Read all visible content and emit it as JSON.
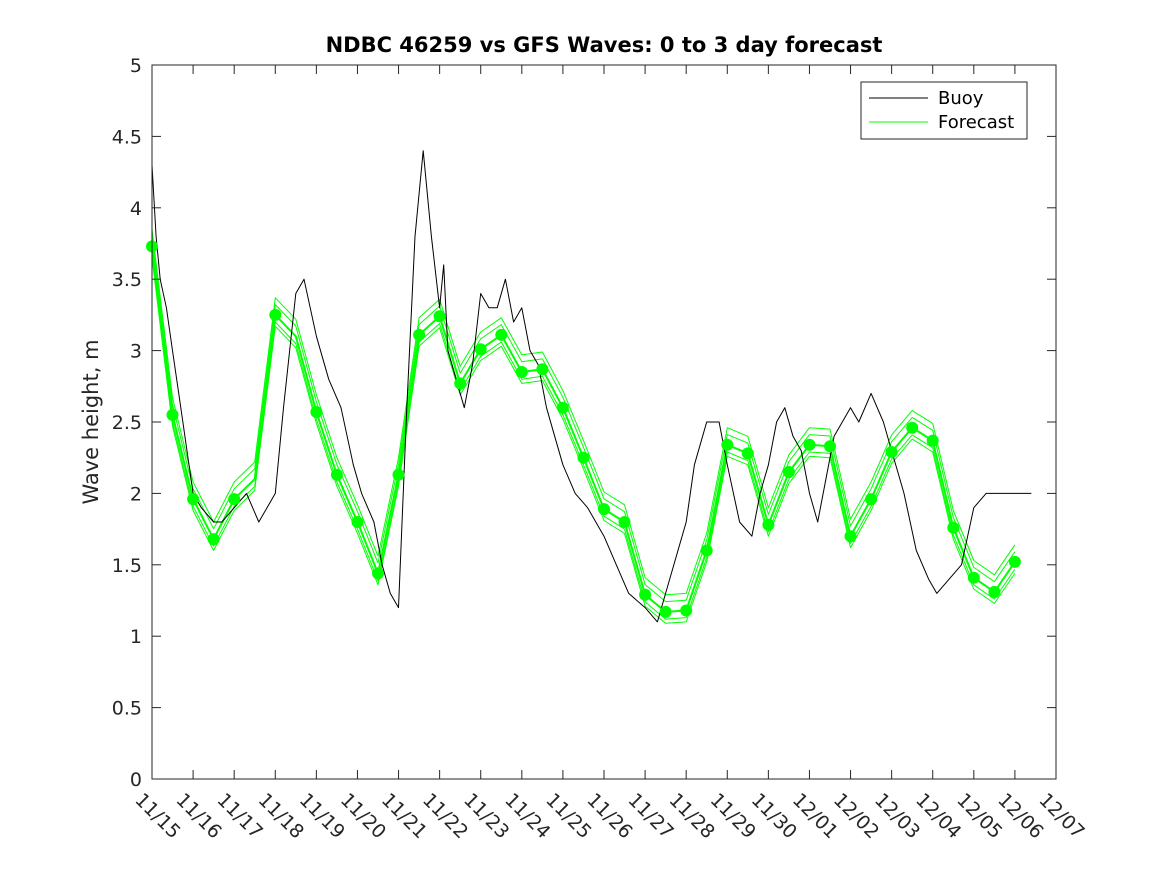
{
  "chart_data": {
    "type": "line",
    "title": "NDBC 46259 vs GFS Waves: 0 to 3 day forecast",
    "xlabel": "",
    "ylabel": "Wave height, m",
    "xlim": [
      0,
      22
    ],
    "ylim": [
      0,
      5
    ],
    "yticks": [
      0,
      0.5,
      1,
      1.5,
      2,
      2.5,
      3,
      3.5,
      4,
      4.5,
      5
    ],
    "ytick_labels": [
      "0",
      "0.5",
      "1",
      "1.5",
      "2",
      "2.5",
      "3",
      "3.5",
      "4",
      "4.5",
      "5"
    ],
    "xtick_labels": [
      "11/15",
      "11/16",
      "11/17",
      "11/18",
      "11/19",
      "11/20",
      "11/21",
      "11/22",
      "11/23",
      "11/24",
      "11/25",
      "11/26",
      "11/27",
      "11/28",
      "11/29",
      "11/30",
      "12/01",
      "12/02",
      "12/03",
      "12/04",
      "12/05",
      "12/06",
      "12/07"
    ],
    "legend": {
      "location": "top-right",
      "entries": [
        "Buoy",
        "Forecast"
      ]
    },
    "colors": {
      "buoy": "#000000",
      "forecast": "#00ff00",
      "axes": "#262626"
    },
    "series": [
      {
        "name": "Buoy",
        "x": [
          0,
          0.1,
          0.2,
          0.35,
          0.5,
          0.7,
          1.0,
          1.2,
          1.5,
          1.7,
          2.0,
          2.3,
          2.6,
          3.0,
          3.2,
          3.5,
          3.7,
          4.0,
          4.3,
          4.6,
          4.9,
          5.1,
          5.4,
          5.6,
          5.8,
          6.0,
          6.2,
          6.4,
          6.6,
          6.8,
          7.0,
          7.1,
          7.2,
          7.4,
          7.6,
          7.8,
          8.0,
          8.2,
          8.4,
          8.6,
          8.8,
          9.0,
          9.2,
          9.4,
          9.6,
          9.8,
          10.0,
          10.3,
          10.6,
          11.0,
          11.3,
          11.6,
          12.0,
          12.3,
          12.6,
          13.0,
          13.2,
          13.5,
          13.8,
          14.0,
          14.3,
          14.6,
          14.8,
          15.0,
          15.2,
          15.4,
          15.6,
          15.8,
          16.0,
          16.2,
          16.4,
          16.6,
          16.8,
          17.0,
          17.2,
          17.5,
          17.8,
          18.0,
          18.3,
          18.6,
          18.9,
          19.1,
          19.4,
          19.7,
          20.0,
          20.3,
          20.6,
          20.9,
          21.2,
          21.4
        ],
        "values": [
          4.3,
          3.8,
          3.5,
          3.3,
          3.0,
          2.6,
          2.0,
          1.9,
          1.8,
          1.8,
          1.9,
          2.0,
          1.8,
          2.0,
          2.6,
          3.4,
          3.5,
          3.1,
          2.8,
          2.6,
          2.2,
          2.0,
          1.8,
          1.5,
          1.3,
          1.2,
          2.6,
          3.8,
          4.4,
          3.8,
          3.3,
          3.6,
          3.0,
          2.8,
          2.6,
          2.9,
          3.4,
          3.3,
          3.3,
          3.5,
          3.2,
          3.3,
          3.0,
          2.9,
          2.6,
          2.4,
          2.2,
          2.0,
          1.9,
          1.7,
          1.5,
          1.3,
          1.2,
          1.1,
          1.4,
          1.8,
          2.2,
          2.5,
          2.5,
          2.2,
          1.8,
          1.7,
          2.0,
          2.2,
          2.5,
          2.6,
          2.4,
          2.3,
          2.0,
          1.8,
          2.1,
          2.4,
          2.5,
          2.6,
          2.5,
          2.7,
          2.5,
          2.3,
          2.0,
          1.6,
          1.4,
          1.3,
          1.4,
          1.5,
          1.9,
          2.0,
          2.0,
          2.0,
          2.0,
          2.0
        ]
      },
      {
        "name": "Forecast",
        "x": [
          0,
          0.5,
          1.0,
          1.5,
          2.0,
          2.5,
          3.0,
          3.5,
          4.0,
          4.5,
          5.0,
          5.5,
          6.0,
          6.5,
          7.0,
          7.5,
          8.0,
          8.5,
          9.0,
          9.5,
          10.0,
          10.5,
          11.0,
          11.5,
          12.0,
          12.5,
          13.0,
          13.5,
          14.0,
          14.5,
          15.0,
          15.5,
          16.0,
          16.5,
          17.0,
          17.5,
          18.0,
          18.5,
          19.0,
          19.5,
          20.0,
          20.5,
          21.0
        ],
        "values": [
          3.73,
          2.55,
          1.96,
          1.68,
          1.96,
          2.1,
          3.25,
          3.1,
          2.57,
          2.13,
          1.8,
          1.44,
          2.13,
          3.11,
          3.24,
          2.77,
          3.01,
          3.11,
          2.85,
          2.87,
          2.6,
          2.25,
          1.89,
          1.8,
          1.29,
          1.17,
          1.18,
          1.6,
          2.34,
          2.28,
          1.78,
          2.15,
          2.34,
          2.33,
          1.7,
          1.96,
          2.29,
          2.46,
          2.37,
          1.76,
          1.41,
          1.31,
          1.52
        ]
      }
    ],
    "forecast_markers": {
      "x": [
        0,
        0.5,
        1.0,
        1.5,
        2.0,
        3.0,
        4.0,
        4.5,
        5.0,
        5.5,
        6.0,
        6.5,
        7.0,
        7.5,
        8.0,
        8.5,
        9.0,
        9.5,
        10.0,
        10.5,
        11.0,
        11.5,
        12.0,
        12.5,
        13.0,
        13.5,
        14.0,
        14.5,
        15.0,
        15.5,
        16.0,
        16.5,
        17.0,
        17.5,
        18.0,
        18.5,
        19.0,
        19.5,
        20.0,
        20.5,
        21.0
      ],
      "values": [
        3.73,
        2.55,
        1.96,
        1.68,
        1.96,
        3.25,
        2.57,
        2.13,
        1.8,
        1.44,
        2.13,
        3.11,
        3.24,
        2.77,
        3.01,
        3.11,
        2.85,
        2.87,
        2.6,
        2.25,
        1.89,
        1.8,
        1.29,
        1.17,
        1.18,
        1.6,
        2.34,
        2.28,
        1.78,
        2.15,
        2.34,
        2.33,
        1.7,
        1.96,
        2.29,
        2.46,
        2.37,
        1.76,
        1.41,
        1.31,
        1.52
      ]
    }
  }
}
